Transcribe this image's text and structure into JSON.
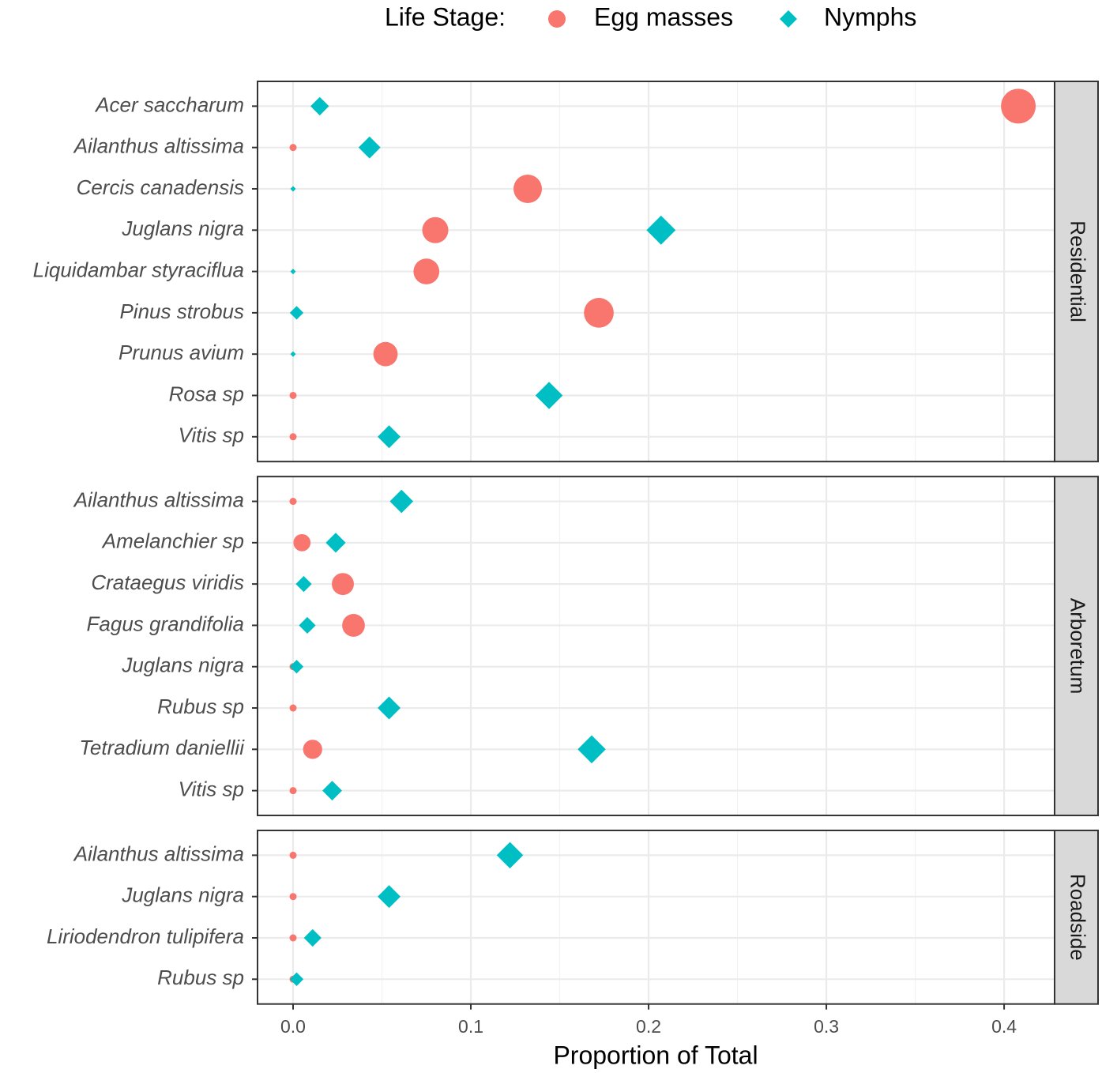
{
  "chart_data": {
    "type": "dot",
    "legend_title": "Life Stage:",
    "legend_position": "top",
    "x_label": "Proportion of Total",
    "xlim": [
      -0.02,
      0.4284
    ],
    "xticks": [
      {
        "value": 0,
        "label": "0.0"
      },
      0.1,
      0.2,
      0.3,
      0.4
    ],
    "minor_xticks": [
      0.05,
      0.15,
      0.25,
      0.35
    ],
    "grid": true,
    "facets": [
      {
        "label": "Residential",
        "categories": [
          "Acer saccharum",
          "Ailanthus altissima",
          "Cercis canadensis",
          "Juglans nigra",
          "Liquidambar styraciflua",
          "Pinus strobus",
          "Prunus avium",
          "Rosa sp",
          "Vitis sp"
        ]
      },
      {
        "label": "Arboretum",
        "categories": [
          "Ailanthus altissima",
          "Amelanchier sp",
          "Crataegus viridis",
          "Fagus grandifolia",
          "Juglans nigra",
          "Rubus sp",
          "Tetradium daniellii",
          "Vitis sp"
        ]
      },
      {
        "label": "Roadside",
        "categories": [
          "Ailanthus altissima",
          "Juglans nigra",
          "Liriodendron tulipifera",
          "Rubus sp"
        ]
      }
    ],
    "series": [
      {
        "name": "Egg masses",
        "color": "#F8766D",
        "marker": "circle",
        "values": [
          [
            0.408,
            0,
            0.132,
            0.08,
            0.075,
            0.172,
            0.052,
            0,
            0
          ],
          [
            0,
            0.005,
            0.028,
            0.034,
            0,
            0,
            0.011,
            0
          ],
          [
            0,
            0,
            0,
            0
          ]
        ]
      },
      {
        "name": "Nymphs",
        "color": "#00BFC4",
        "marker": "diamond",
        "values": [
          [
            0.015,
            0.043,
            0,
            0.207,
            0,
            0.002,
            0,
            0.144,
            0.054
          ],
          [
            0.061,
            0.024,
            0.006,
            0.008,
            0.002,
            0.054,
            0.168,
            0.022
          ],
          [
            0.122,
            0.054,
            0.011,
            0.002
          ]
        ]
      }
    ]
  }
}
